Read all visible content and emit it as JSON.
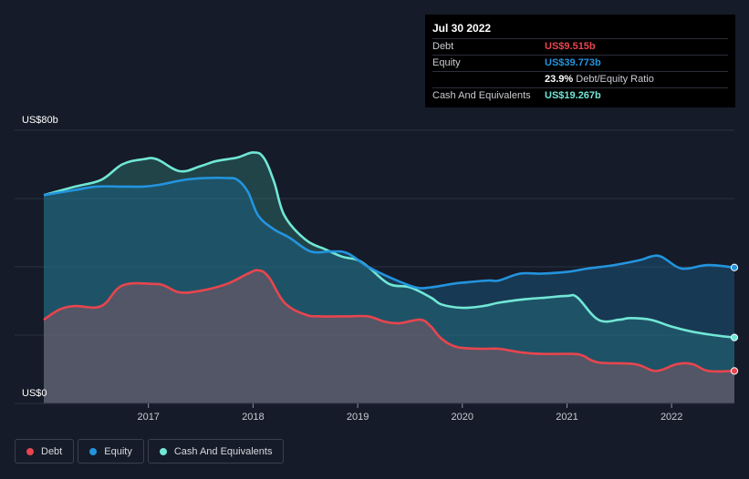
{
  "tooltip": {
    "date": "Jul 30 2022",
    "rows": [
      {
        "label": "Debt",
        "value": "US$9.515b",
        "color": "#e8454e"
      },
      {
        "label": "Equity",
        "value": "US$39.773b",
        "color": "#2394df"
      }
    ],
    "ratio_value": "23.9%",
    "ratio_label": "Debt/Equity Ratio",
    "cash": {
      "label": "Cash And Equivalents",
      "value": "US$19.267b",
      "color": "#71e7d6"
    }
  },
  "legend": [
    {
      "label": "Debt",
      "color": "#e8454e"
    },
    {
      "label": "Equity",
      "color": "#2394df"
    },
    {
      "label": "Cash And Equivalents",
      "color": "#71e7d6"
    }
  ],
  "chart_data": {
    "type": "area",
    "y_unit": "US$",
    "ylim": [
      0,
      80
    ],
    "y_tick_labels": [
      {
        "value": 80,
        "label": "US$80b"
      },
      {
        "value": 0,
        "label": "US$0"
      }
    ],
    "xlim": [
      2016.0,
      2022.6
    ],
    "x_ticks": [
      2017,
      2018,
      2019,
      2020,
      2021,
      2022
    ],
    "grid": true,
    "legend_position": "bottom-left",
    "series": [
      {
        "name": "Cash And Equivalents",
        "color": "#71e7d6",
        "points": [
          [
            2016.0,
            61
          ],
          [
            2016.3,
            63.5
          ],
          [
            2016.55,
            65.5
          ],
          [
            2016.75,
            70
          ],
          [
            2016.95,
            71.5
          ],
          [
            2017.08,
            71.5
          ],
          [
            2017.3,
            68
          ],
          [
            2017.5,
            69.5
          ],
          [
            2017.65,
            71
          ],
          [
            2017.85,
            72
          ],
          [
            2018.0,
            73.5
          ],
          [
            2018.1,
            72
          ],
          [
            2018.2,
            65
          ],
          [
            2018.3,
            55
          ],
          [
            2018.5,
            48
          ],
          [
            2018.7,
            45
          ],
          [
            2018.85,
            43
          ],
          [
            2019.0,
            42
          ],
          [
            2019.1,
            40
          ],
          [
            2019.3,
            35
          ],
          [
            2019.5,
            34
          ],
          [
            2019.7,
            31
          ],
          [
            2019.8,
            29
          ],
          [
            2020.0,
            28
          ],
          [
            2020.2,
            28.5
          ],
          [
            2020.35,
            29.5
          ],
          [
            2020.6,
            30.5
          ],
          [
            2020.8,
            31
          ],
          [
            2021.0,
            31.5
          ],
          [
            2021.1,
            31
          ],
          [
            2021.3,
            24.5
          ],
          [
            2021.5,
            24.5
          ],
          [
            2021.6,
            25
          ],
          [
            2021.8,
            24.5
          ],
          [
            2022.0,
            22.5
          ],
          [
            2022.2,
            21
          ],
          [
            2022.4,
            20
          ],
          [
            2022.6,
            19.3
          ]
        ]
      },
      {
        "name": "Equity",
        "color": "#2394df",
        "points": [
          [
            2016.0,
            61
          ],
          [
            2016.3,
            62.5
          ],
          [
            2016.5,
            63.5
          ],
          [
            2016.75,
            63.5
          ],
          [
            2016.95,
            63.5
          ],
          [
            2017.1,
            64
          ],
          [
            2017.35,
            65.5
          ],
          [
            2017.55,
            66
          ],
          [
            2017.75,
            66
          ],
          [
            2017.85,
            65.5
          ],
          [
            2017.95,
            62
          ],
          [
            2018.05,
            55
          ],
          [
            2018.2,
            51
          ],
          [
            2018.35,
            48.5
          ],
          [
            2018.55,
            44.5
          ],
          [
            2018.75,
            44.5
          ],
          [
            2018.9,
            44
          ],
          [
            2019.1,
            40
          ],
          [
            2019.3,
            37
          ],
          [
            2019.55,
            34
          ],
          [
            2019.7,
            34
          ],
          [
            2019.9,
            35
          ],
          [
            2020.05,
            35.5
          ],
          [
            2020.25,
            36
          ],
          [
            2020.35,
            36
          ],
          [
            2020.55,
            38
          ],
          [
            2020.75,
            38
          ],
          [
            2021.0,
            38.5
          ],
          [
            2021.2,
            39.5
          ],
          [
            2021.45,
            40.5
          ],
          [
            2021.7,
            42
          ],
          [
            2021.8,
            43
          ],
          [
            2021.9,
            43
          ],
          [
            2022.05,
            40
          ],
          [
            2022.15,
            39.5
          ],
          [
            2022.35,
            40.5
          ],
          [
            2022.6,
            39.8
          ]
        ]
      },
      {
        "name": "Debt",
        "color": "#e8454e",
        "points": [
          [
            2016.0,
            24.5
          ],
          [
            2016.15,
            27.5
          ],
          [
            2016.3,
            28.5
          ],
          [
            2016.55,
            28.5
          ],
          [
            2016.75,
            34.5
          ],
          [
            2017.05,
            35
          ],
          [
            2017.15,
            34.5
          ],
          [
            2017.3,
            32.5
          ],
          [
            2017.5,
            33
          ],
          [
            2017.75,
            35
          ],
          [
            2017.95,
            38
          ],
          [
            2018.05,
            39
          ],
          [
            2018.15,
            37
          ],
          [
            2018.3,
            29.5
          ],
          [
            2018.5,
            26
          ],
          [
            2018.65,
            25.5
          ],
          [
            2018.9,
            25.5
          ],
          [
            2019.1,
            25.5
          ],
          [
            2019.25,
            24
          ],
          [
            2019.4,
            23.5
          ],
          [
            2019.6,
            24.5
          ],
          [
            2019.7,
            22.5
          ],
          [
            2019.8,
            19
          ],
          [
            2019.95,
            16.5
          ],
          [
            2020.2,
            16
          ],
          [
            2020.35,
            16
          ],
          [
            2020.55,
            15
          ],
          [
            2020.75,
            14.5
          ],
          [
            2021.05,
            14.5
          ],
          [
            2021.15,
            14
          ],
          [
            2021.3,
            12
          ],
          [
            2021.65,
            11.5
          ],
          [
            2021.85,
            9.5
          ],
          [
            2022.05,
            11.5
          ],
          [
            2022.2,
            11.5
          ],
          [
            2022.35,
            9.5
          ],
          [
            2022.6,
            9.5
          ]
        ]
      }
    ]
  }
}
